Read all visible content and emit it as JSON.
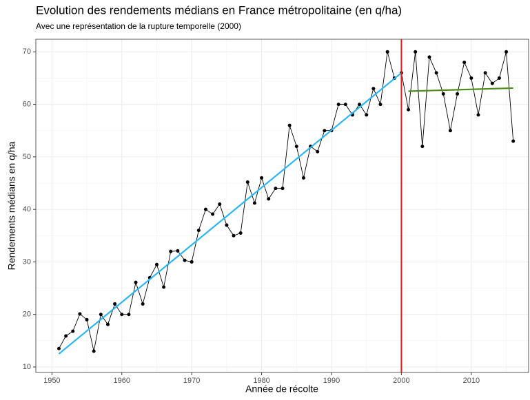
{
  "chart_data": {
    "type": "line",
    "title": "Evolution des rendements médians en France métropolitaine (en q/ha)",
    "subtitle": "Avec une représentation de la rupture temporelle (2000)",
    "x_label": "Année de récolte",
    "y_label": "Rendements médians en q/ha",
    "xlim": [
      1947.7,
      2018.2
    ],
    "ylim": [
      8.95,
      72.4
    ],
    "xticks": [
      1950,
      1960,
      1970,
      1980,
      1990,
      2000,
      2010
    ],
    "yticks": [
      10,
      20,
      30,
      40,
      50,
      60,
      70
    ],
    "minor_xticks": [
      1955,
      1965,
      1975,
      1985,
      1995,
      2005,
      2015
    ],
    "minor_yticks": [
      15,
      25,
      35,
      45,
      55,
      65
    ],
    "grid": true,
    "vline": 2000,
    "vline_color": "#e41a1c",
    "series": [
      {
        "color": "#000000",
        "markers": true,
        "x": [
          1951,
          1952,
          1953,
          1954,
          1955,
          1956,
          1957,
          1958,
          1959,
          1960,
          1961,
          1962,
          1963,
          1964,
          1965,
          1966,
          1967,
          1968,
          1969,
          1970,
          1971,
          1972,
          1973,
          1974,
          1975,
          1976,
          1977,
          1978,
          1979,
          1980,
          1981,
          1982,
          1983,
          1984,
          1985,
          1986,
          1987,
          1988,
          1989,
          1990,
          1991,
          1992,
          1993,
          1994,
          1995,
          1996,
          1997,
          1998,
          1999,
          2000,
          2001,
          2002,
          2003,
          2004,
          2005,
          2006,
          2007,
          2008,
          2009,
          2010,
          2011,
          2012,
          2013,
          2014,
          2015,
          2016
        ],
        "values": [
          13.5,
          15.9,
          16.8,
          20.1,
          19,
          13,
          20,
          18.1,
          22,
          20,
          20,
          26.1,
          22,
          27,
          29.5,
          25.2,
          32,
          32.1,
          30.3,
          30,
          36,
          40,
          39.1,
          41,
          37,
          35,
          35.5,
          45.2,
          41.2,
          46,
          42,
          44,
          44,
          56,
          52,
          46,
          52,
          51,
          55,
          55,
          60,
          60,
          58,
          60,
          58,
          63,
          60,
          70,
          65,
          66,
          59,
          70,
          52,
          69,
          66,
          62,
          55,
          62,
          68,
          65,
          58,
          66,
          64,
          65,
          70,
          53
        ]
      },
      {
        "color": "#29b6f6",
        "markers": false,
        "x": [
          1951,
          2000
        ],
        "values": [
          12.5,
          66
        ]
      },
      {
        "color": "#4d8c1a",
        "markers": false,
        "x": [
          2001,
          2016
        ],
        "values": [
          62.5,
          63.1
        ]
      }
    ]
  }
}
